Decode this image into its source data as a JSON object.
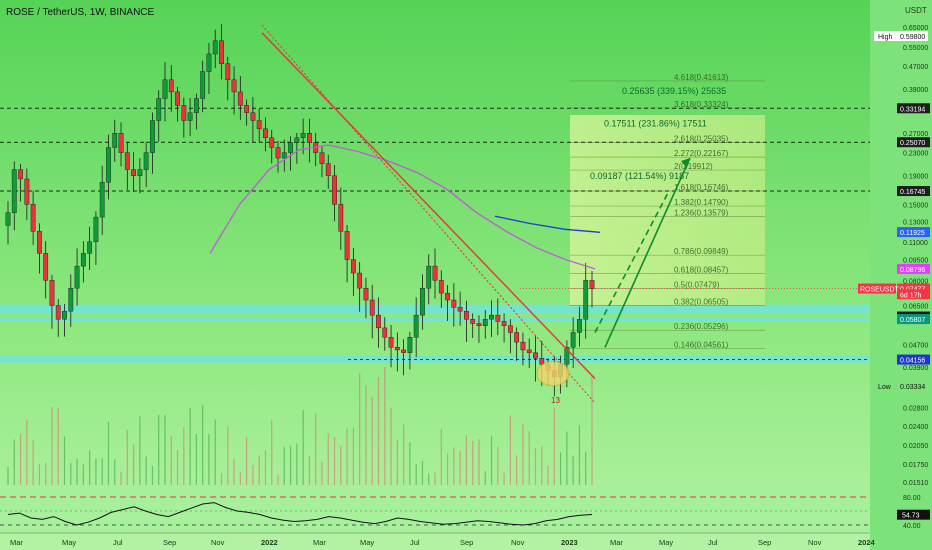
{
  "header": {
    "symbol_title": "ROSE / TetherUS, 1W, BINANCE"
  },
  "price_axis": {
    "currency": "USDT",
    "ticks": [
      "0.65000",
      "0.55000",
      "0.47000",
      "0.39000",
      "0.27000",
      "0.23000",
      "0.19000",
      "0.15000",
      "0.13000",
      "0.11000",
      "0.09500",
      "0.08000",
      "0.06500",
      "0.04700",
      "0.03900",
      "0.02800",
      "0.02400",
      "0.02050",
      "0.01750",
      "0.01510"
    ],
    "high_label": "High",
    "high_value": "0.59800",
    "low_label": "Low",
    "low_value": "0.03334",
    "badges": [
      {
        "text": "0.33194",
        "price": 0.33194,
        "bg": "#1e1e1e",
        "color": "#ffffff"
      },
      {
        "text": "0.25070",
        "price": 0.2507,
        "bg": "#1e1e1e",
        "color": "#ffffff"
      },
      {
        "text": "0.16745",
        "price": 0.16745,
        "bg": "#1e1e1e",
        "color": "#ffffff"
      },
      {
        "text": "0.11925",
        "price": 0.11925,
        "bg": "#2962ff",
        "color": "#ffffff"
      },
      {
        "text": "0.08796",
        "price": 0.08796,
        "bg": "#e040fb",
        "color": "#ffffff"
      },
      {
        "text": "0.07477",
        "price": 0.07477,
        "bg": "#f23645",
        "color": "#ffffff"
      },
      {
        "text": "6d 17h",
        "price": 0.0713,
        "bg": "#f23645",
        "color": "#ffffff"
      },
      {
        "text": "0.05932",
        "price": 0.05932,
        "bg": "#1e1e1e",
        "color": "#ffffff"
      },
      {
        "text": "0.05807",
        "price": 0.05807,
        "bg": "#089981",
        "color": "#ffffff"
      },
      {
        "text": "0.04156",
        "price": 0.04156,
        "bg": "#1d35c9",
        "color": "#ffffff"
      }
    ],
    "symbol_tag": "ROSEUSDT"
  },
  "time_axis": {
    "labels": [
      {
        "text": "Mar",
        "x": 10,
        "bold": false
      },
      {
        "text": "May",
        "x": 62,
        "bold": false
      },
      {
        "text": "Jul",
        "x": 113,
        "bold": false
      },
      {
        "text": "Sep",
        "x": 163,
        "bold": false
      },
      {
        "text": "Nov",
        "x": 211,
        "bold": false
      },
      {
        "text": "2022",
        "x": 261,
        "bold": true
      },
      {
        "text": "Mar",
        "x": 313,
        "bold": false
      },
      {
        "text": "May",
        "x": 360,
        "bold": false
      },
      {
        "text": "Jul",
        "x": 410,
        "bold": false
      },
      {
        "text": "Sep",
        "x": 460,
        "bold": false
      },
      {
        "text": "Nov",
        "x": 511,
        "bold": false
      },
      {
        "text": "2023",
        "x": 561,
        "bold": true
      },
      {
        "text": "Mar",
        "x": 610,
        "bold": false
      },
      {
        "text": "May",
        "x": 659,
        "bold": false
      },
      {
        "text": "Jul",
        "x": 708,
        "bold": false
      },
      {
        "text": "Sep",
        "x": 758,
        "bold": false
      },
      {
        "text": "Nov",
        "x": 808,
        "bold": false
      },
      {
        "text": "2024",
        "x": 858,
        "bold": true
      }
    ]
  },
  "horizontal_levels": [
    0.33194,
    0.2507,
    0.16745
  ],
  "fib_levels": [
    {
      "label": "4.618(0.41613)",
      "price": 0.41613
    },
    {
      "label": "3.618(0.33324)",
      "price": 0.33324
    },
    {
      "label": "2.618(0.25035)",
      "price": 0.25035
    },
    {
      "label": "2.272(0.22167)",
      "price": 0.22167
    },
    {
      "label": "2(0.19912)",
      "price": 0.19912
    },
    {
      "label": "1.618(0.16746)",
      "price": 0.16746
    },
    {
      "label": "1.382(0.14790)",
      "price": 0.1479
    },
    {
      "label": "1.236(0.13579)",
      "price": 0.13579
    },
    {
      "label": "0.786(0.09849)",
      "price": 0.09849
    },
    {
      "label": "0.618(0.08457)",
      "price": 0.08457
    },
    {
      "label": "0.5(0.07479)",
      "price": 0.07479
    },
    {
      "label": "0.382(0.06505)",
      "price": 0.06505
    },
    {
      "label": "0.236(0.05296)",
      "price": 0.05296
    },
    {
      "label": "0.146(0.04561)",
      "price": 0.04561
    }
  ],
  "target_annotations": [
    {
      "text": "0.25635 (339.15%) 25635",
      "price": 0.373
    },
    {
      "text": "0.17511 (231.86%) 17511",
      "price": 0.285
    },
    {
      "text": "0.09187 (121.54%) 9187",
      "price": 0.185
    }
  ],
  "event_label": "13",
  "rsi": {
    "value_badge": "54.73",
    "upper_level": "80.00",
    "lower_level": "40.00",
    "values": [
      55,
      57,
      50,
      48,
      52,
      45,
      40,
      44,
      50,
      58,
      62,
      66,
      60,
      55,
      52,
      58,
      64,
      70,
      72,
      65,
      60,
      58,
      55,
      50,
      47,
      45,
      46,
      48,
      52,
      50,
      47,
      44,
      42,
      45,
      50,
      48,
      45,
      43,
      41,
      42,
      44,
      46,
      45,
      43,
      41,
      40,
      42,
      46,
      48,
      52,
      54,
      55
    ]
  },
  "chart_data": {
    "type": "candlestick",
    "title": "ROSE / TetherUS, 1W, BINANCE",
    "y_scale": "log",
    "ylim": [
      0.0145,
      0.72
    ],
    "weekly_close_approx": [
      0.14,
      0.2,
      0.185,
      0.15,
      0.12,
      0.1,
      0.08,
      0.065,
      0.058,
      0.062,
      0.075,
      0.09,
      0.1,
      0.11,
      0.135,
      0.18,
      0.24,
      0.27,
      0.23,
      0.2,
      0.19,
      0.2,
      0.23,
      0.3,
      0.36,
      0.42,
      0.38,
      0.34,
      0.3,
      0.32,
      0.36,
      0.45,
      0.52,
      0.58,
      0.48,
      0.42,
      0.38,
      0.34,
      0.32,
      0.3,
      0.28,
      0.26,
      0.24,
      0.22,
      0.23,
      0.25,
      0.26,
      0.27,
      0.25,
      0.23,
      0.21,
      0.19,
      0.15,
      0.12,
      0.095,
      0.085,
      0.075,
      0.068,
      0.06,
      0.054,
      0.05,
      0.046,
      0.045,
      0.044,
      0.05,
      0.06,
      0.075,
      0.09,
      0.08,
      0.072,
      0.068,
      0.064,
      0.062,
      0.058,
      0.056,
      0.055,
      0.058,
      0.06,
      0.057,
      0.055,
      0.052,
      0.048,
      0.045,
      0.044,
      0.042,
      0.04,
      0.038,
      0.036,
      0.04,
      0.046,
      0.052,
      0.058,
      0.08,
      0.07477
    ],
    "ma_purple_approx": [
      0.1,
      0.15,
      0.2,
      0.235,
      0.245,
      0.232,
      0.215,
      0.195,
      0.17,
      0.14,
      0.12,
      0.105,
      0.095,
      0.088
    ],
    "ma_blue_approx": [
      0.136,
      0.128,
      0.122,
      0.119
    ],
    "projected_target": 0.22,
    "current_price": 0.07477
  }
}
